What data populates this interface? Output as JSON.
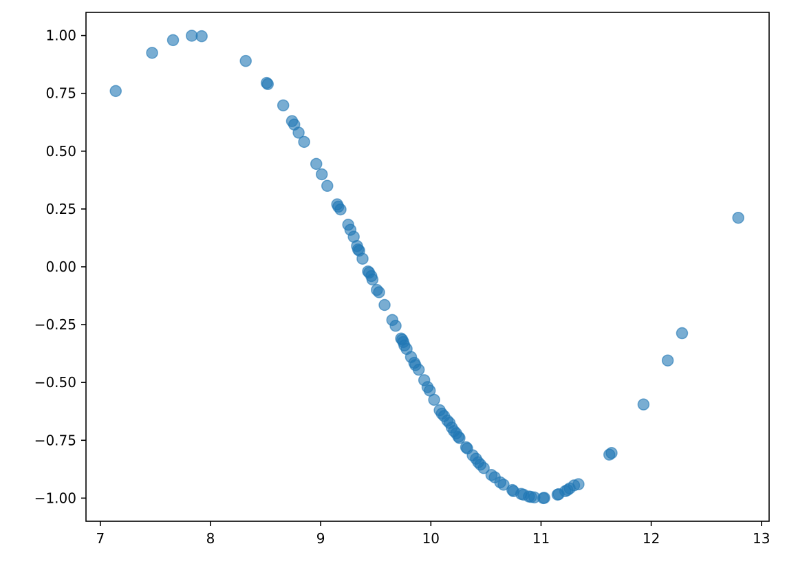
{
  "chart_data": {
    "type": "scatter",
    "title": "",
    "xlabel": "",
    "ylabel": "",
    "xlim": [
      6.87,
      13.07
    ],
    "ylim": [
      -1.1,
      1.1
    ],
    "xticks": [
      7,
      8,
      9,
      10,
      11,
      12,
      13
    ],
    "xtick_labels": [
      "7",
      "8",
      "9",
      "10",
      "11",
      "12",
      "13"
    ],
    "yticks": [
      1.0,
      0.75,
      0.5,
      0.25,
      0.0,
      -0.25,
      -0.5,
      -0.75,
      -1.0
    ],
    "ytick_labels": [
      "1.00",
      "0.75",
      "0.50",
      "0.25",
      "0.00",
      "−0.25",
      "−0.50",
      "−0.75",
      "−1.00"
    ],
    "grid": false,
    "marker_color": "#1f77b4",
    "marker_alpha": 0.6,
    "points": [
      [
        7.14,
        0.76
      ],
      [
        7.47,
        0.925
      ],
      [
        7.66,
        0.98
      ],
      [
        7.83,
        0.999
      ],
      [
        7.92,
        0.997
      ],
      [
        8.32,
        0.89
      ],
      [
        8.51,
        0.795
      ],
      [
        8.52,
        0.79
      ],
      [
        8.66,
        0.698
      ],
      [
        8.74,
        0.63
      ],
      [
        8.76,
        0.615
      ],
      [
        8.8,
        0.58
      ],
      [
        8.85,
        0.54
      ],
      [
        8.96,
        0.445
      ],
      [
        9.01,
        0.4
      ],
      [
        9.06,
        0.35
      ],
      [
        9.15,
        0.27
      ],
      [
        9.16,
        0.26
      ],
      [
        9.18,
        0.248
      ],
      [
        9.25,
        0.182
      ],
      [
        9.27,
        0.16
      ],
      [
        9.3,
        0.13
      ],
      [
        9.33,
        0.09
      ],
      [
        9.34,
        0.075
      ],
      [
        9.35,
        0.07
      ],
      [
        9.38,
        0.035
      ],
      [
        9.43,
        -0.02
      ],
      [
        9.44,
        -0.025
      ],
      [
        9.46,
        -0.04
      ],
      [
        9.47,
        -0.055
      ],
      [
        9.51,
        -0.1
      ],
      [
        9.53,
        -0.11
      ],
      [
        9.58,
        -0.165
      ],
      [
        9.65,
        -0.23
      ],
      [
        9.68,
        -0.255
      ],
      [
        9.73,
        -0.31
      ],
      [
        9.74,
        -0.315
      ],
      [
        9.75,
        -0.325
      ],
      [
        9.76,
        -0.34
      ],
      [
        9.78,
        -0.355
      ],
      [
        9.82,
        -0.39
      ],
      [
        9.85,
        -0.415
      ],
      [
        9.86,
        -0.425
      ],
      [
        9.89,
        -0.445
      ],
      [
        9.94,
        -0.49
      ],
      [
        9.97,
        -0.52
      ],
      [
        9.99,
        -0.535
      ],
      [
        10.03,
        -0.575
      ],
      [
        10.08,
        -0.62
      ],
      [
        10.1,
        -0.635
      ],
      [
        10.12,
        -0.645
      ],
      [
        10.15,
        -0.665
      ],
      [
        10.17,
        -0.675
      ],
      [
        10.19,
        -0.695
      ],
      [
        10.21,
        -0.71
      ],
      [
        10.23,
        -0.72
      ],
      [
        10.25,
        -0.735
      ],
      [
        10.26,
        -0.74
      ],
      [
        10.32,
        -0.78
      ],
      [
        10.33,
        -0.785
      ],
      [
        10.38,
        -0.815
      ],
      [
        10.41,
        -0.83
      ],
      [
        10.43,
        -0.845
      ],
      [
        10.45,
        -0.855
      ],
      [
        10.48,
        -0.87
      ],
      [
        10.55,
        -0.9
      ],
      [
        10.58,
        -0.91
      ],
      [
        10.63,
        -0.932
      ],
      [
        10.66,
        -0.942
      ],
      [
        10.74,
        -0.965
      ],
      [
        10.75,
        -0.97
      ],
      [
        10.82,
        -0.982
      ],
      [
        10.84,
        -0.985
      ],
      [
        10.89,
        -0.993
      ],
      [
        10.91,
        -0.995
      ],
      [
        10.94,
        -0.997
      ],
      [
        11.02,
        -1.0
      ],
      [
        11.03,
        -0.999
      ],
      [
        11.15,
        -0.985
      ],
      [
        11.16,
        -0.983
      ],
      [
        11.22,
        -0.97
      ],
      [
        11.24,
        -0.965
      ],
      [
        11.26,
        -0.958
      ],
      [
        11.3,
        -0.945
      ],
      [
        11.34,
        -0.94
      ],
      [
        11.62,
        -0.812
      ],
      [
        11.64,
        -0.805
      ],
      [
        11.93,
        -0.595
      ],
      [
        12.15,
        -0.405
      ],
      [
        12.28,
        -0.287
      ],
      [
        12.79,
        0.212
      ]
    ]
  }
}
